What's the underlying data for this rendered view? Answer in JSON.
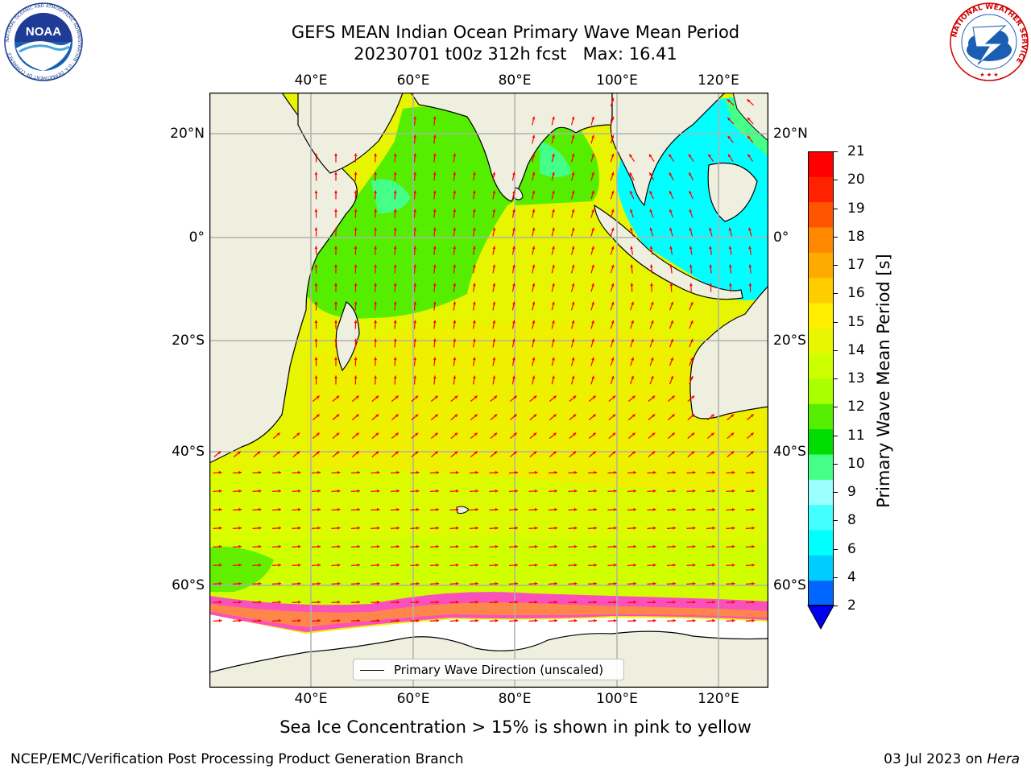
{
  "title": {
    "line1": "GEFS MEAN Indian Ocean Primary Wave Mean Period",
    "line2": "20230701 t00z 312h fcst   Max: 16.41"
  },
  "logos": {
    "noaa": {
      "name": "NOAA",
      "ring_text": "NATIONAL OCEANIC AND ATMOSPHERIC ADMINISTRATION · U.S. DEPARTMENT OF COMMERCE"
    },
    "nws": {
      "ring_text": "NATIONAL WEATHER SERVICE"
    }
  },
  "map": {
    "lon_ticks": [
      "40°E",
      "60°E",
      "80°E",
      "100°E",
      "120°E"
    ],
    "lat_ticks": [
      "20°N",
      "0°",
      "20°S",
      "40°S",
      "60°S"
    ],
    "land_color": "#efefdf",
    "sea_ice_color": "#ffffff",
    "ice_edge_color": "#ff33dd",
    "arrow_color": "#ff0000",
    "gridline_color": "#b0b0b0"
  },
  "legend": {
    "label": "Primary Wave Direction (unscaled)"
  },
  "colorbar": {
    "label": "Primary Wave Mean Period [s]",
    "ticks": [
      "2",
      "4",
      "6",
      "8",
      "9",
      "10",
      "11",
      "12",
      "13",
      "14",
      "15",
      "16",
      "17",
      "18",
      "19",
      "20",
      "21"
    ],
    "colors": [
      "#0066ff",
      "#00ccff",
      "#00ffff",
      "#44ffff",
      "#99ffff",
      "#44ff88",
      "#00dd00",
      "#55ee00",
      "#aaff00",
      "#ccff00",
      "#e8f500",
      "#ffee00",
      "#ffcc00",
      "#ffaa00",
      "#ff8800",
      "#ff5500",
      "#ff2200",
      "#ff0000"
    ],
    "under_color": "#0000ee"
  },
  "caption": "Sea Ice Concentration > 15% is shown in pink to yellow",
  "footer": {
    "left": "NCEP/EMC/Verification Post Processing Product Generation Branch",
    "date": "03 Jul 2023 on ",
    "host": "Hera"
  }
}
